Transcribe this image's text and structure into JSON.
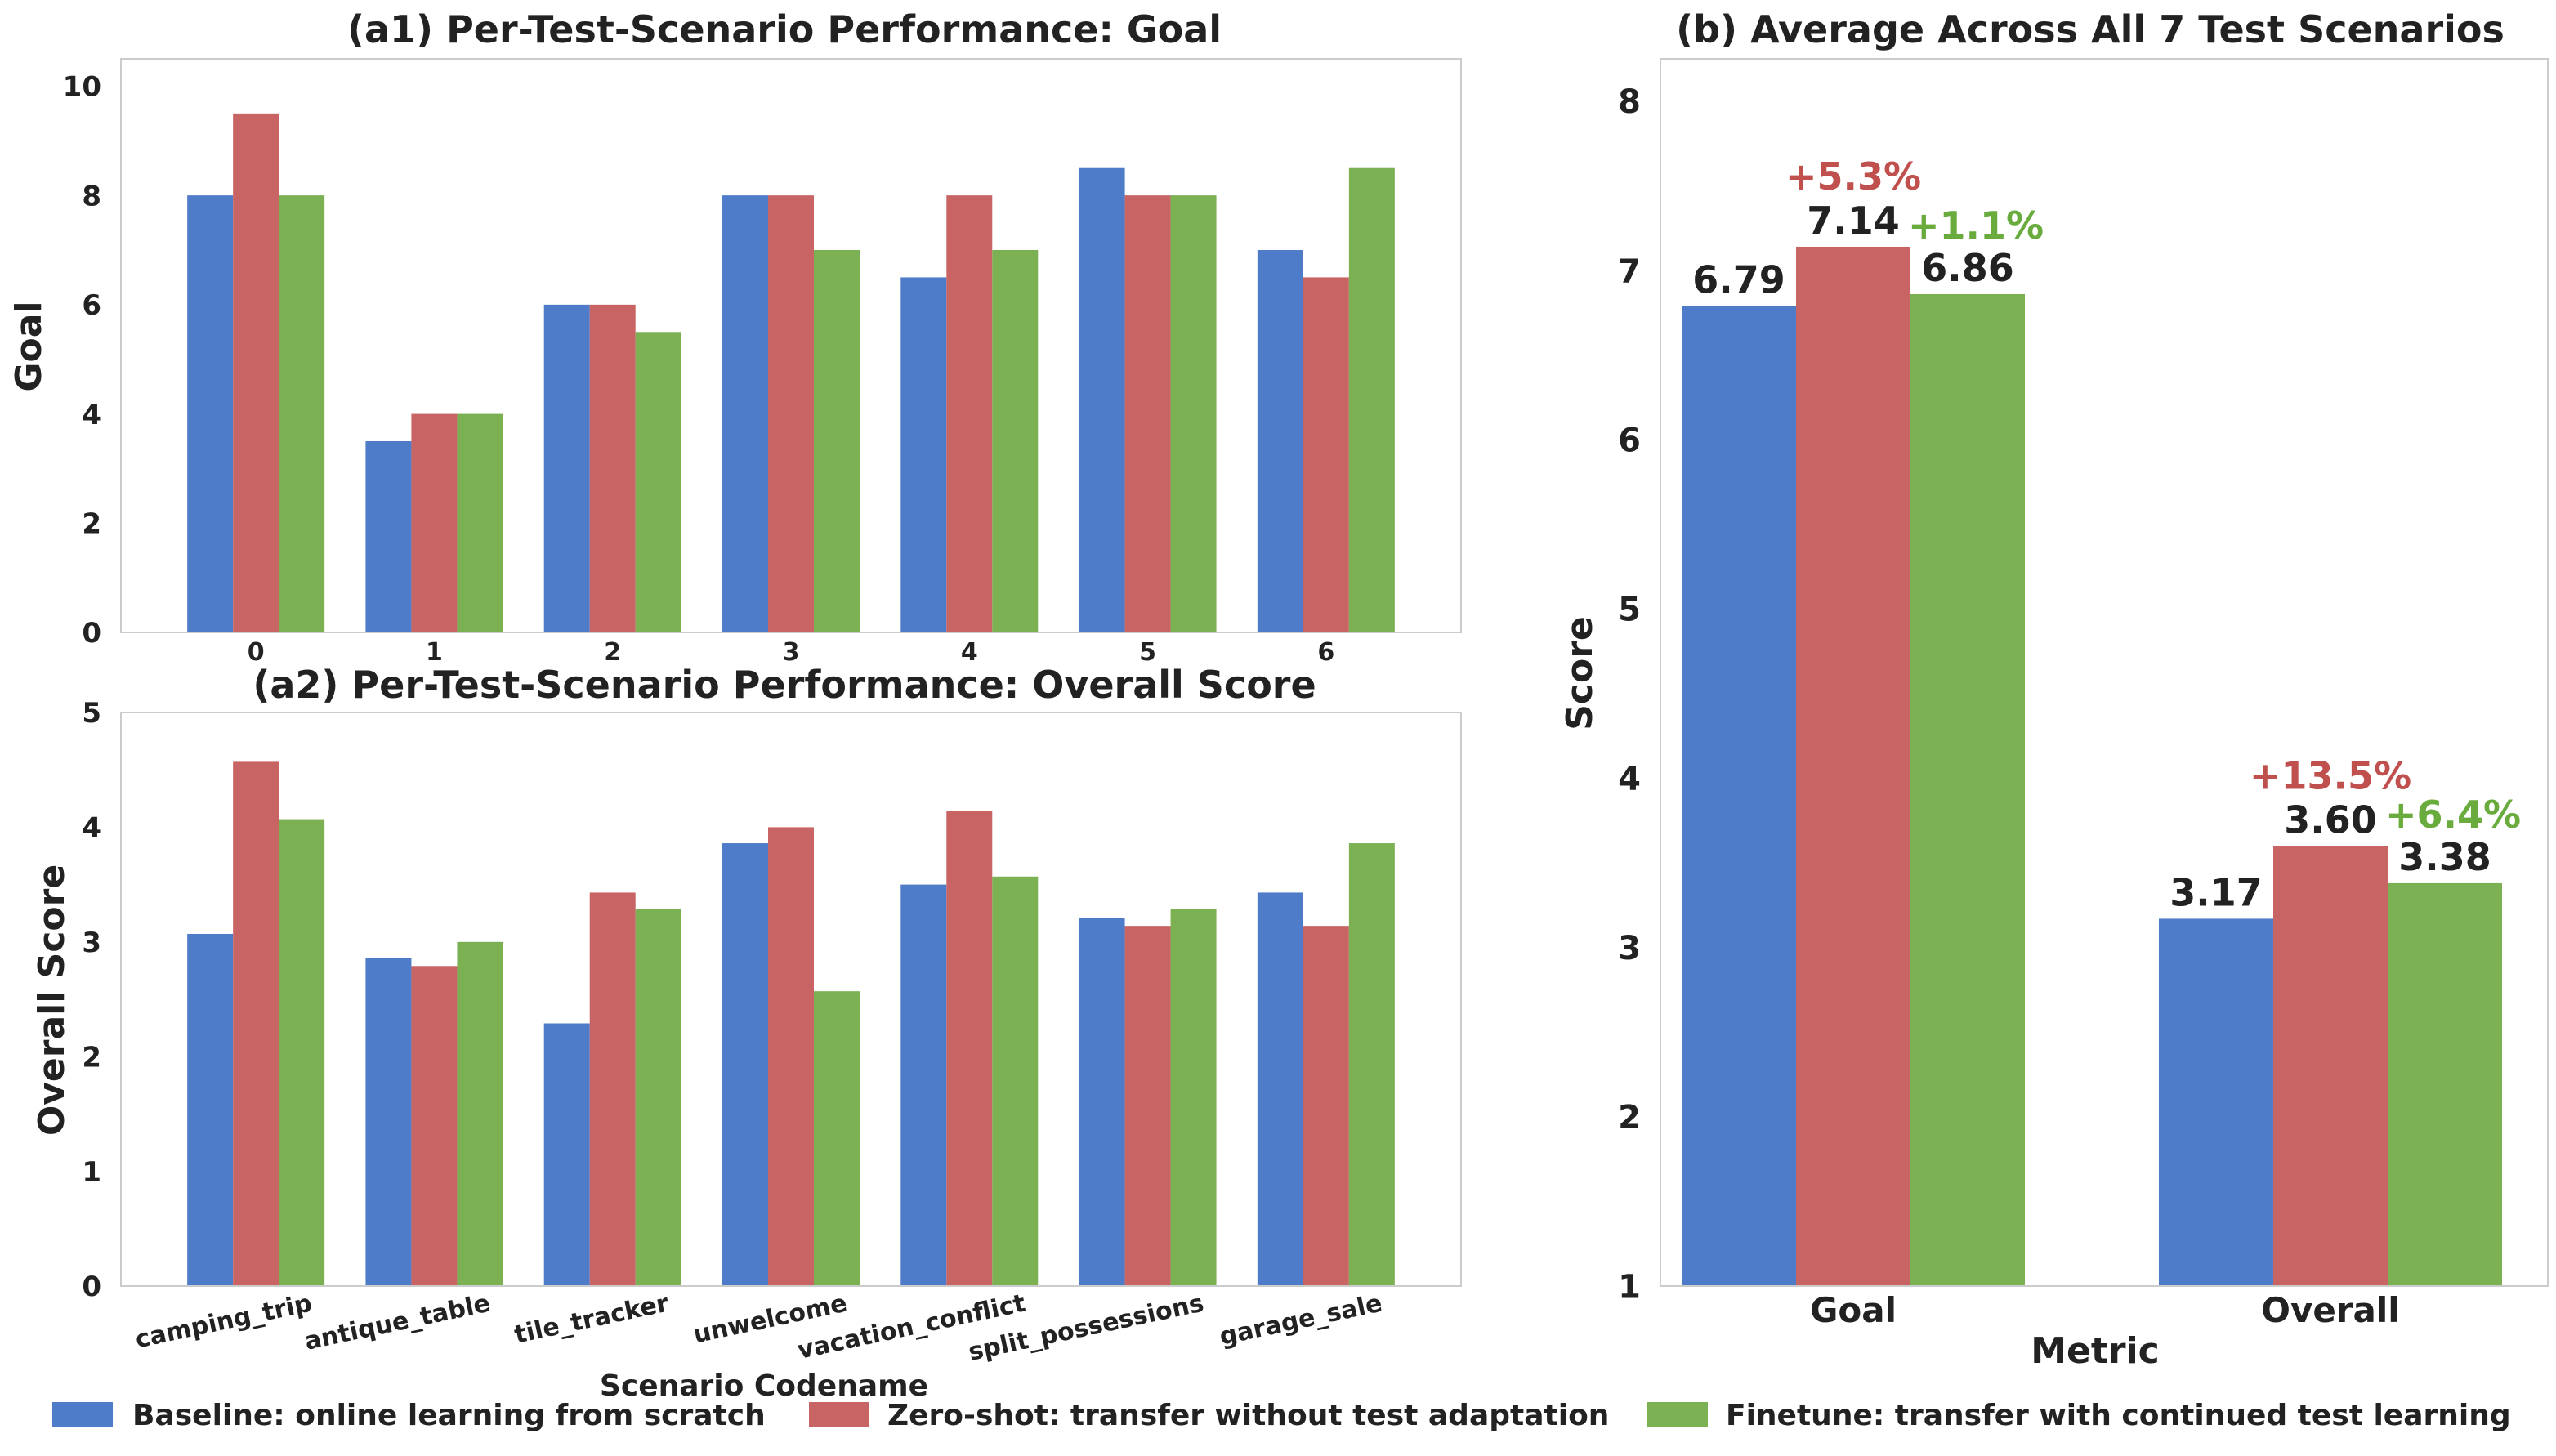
{
  "colors": {
    "baseline": "#4f7cc8",
    "zeroshot": "#c86464",
    "finetune": "#7bb053",
    "zeroshot_text": "#c0504d",
    "finetune_text": "#6aab3e",
    "axis": "#cccccc",
    "text": "#222222"
  },
  "legend": {
    "items": [
      {
        "label": "Baseline: online learning from scratch",
        "color": "#4f7cc8"
      },
      {
        "label": "Zero-shot: transfer without test adaptation",
        "color": "#c86464"
      },
      {
        "label": "Finetune: transfer with continued test learning",
        "color": "#7bb053"
      }
    ]
  },
  "chart_data": [
    {
      "id": "a1",
      "type": "bar",
      "title": "(a1) Per-Test-Scenario Performance: Goal",
      "ylabel": "Goal",
      "xlabel": "",
      "ylim": [
        0,
        10.5
      ],
      "yticks": [
        0,
        2,
        4,
        6,
        8,
        10
      ],
      "categories": [
        "0",
        "1",
        "2",
        "3",
        "4",
        "5",
        "6"
      ],
      "series": [
        {
          "name": "Baseline: online learning from scratch",
          "values": [
            8,
            3.5,
            6,
            8,
            6.5,
            8.5,
            7
          ]
        },
        {
          "name": "Zero-shot: transfer without test adaptation",
          "values": [
            9.5,
            4,
            6,
            8,
            8,
            8,
            6.5
          ]
        },
        {
          "name": "Finetune: transfer with continued test learning",
          "values": [
            8,
            4,
            5.5,
            7,
            7,
            8,
            8.5
          ]
        }
      ],
      "grid": false
    },
    {
      "id": "a2",
      "type": "bar",
      "title": "(a2) Per-Test-Scenario Performance: Overall Score",
      "ylabel": "Overall Score",
      "xlabel": "Scenario Codename",
      "ylim": [
        0,
        5
      ],
      "yticks": [
        0,
        1,
        2,
        3,
        4,
        5
      ],
      "categories": [
        "camping_trip",
        "antique_table",
        "tile_tracker",
        "unwelcome",
        "vacation_conflict",
        "split_possessions",
        "garage_sale"
      ],
      "series": [
        {
          "name": "Baseline: online learning from scratch",
          "values": [
            3.07,
            2.86,
            2.29,
            3.86,
            3.5,
            3.21,
            3.43
          ]
        },
        {
          "name": "Zero-shot: transfer without test adaptation",
          "values": [
            4.57,
            2.79,
            3.43,
            4.0,
            4.14,
            3.14,
            3.14
          ]
        },
        {
          "name": "Finetune: transfer with continued test learning",
          "values": [
            4.07,
            3.0,
            3.29,
            2.57,
            3.57,
            3.29,
            3.86
          ]
        }
      ],
      "grid": false
    },
    {
      "id": "b",
      "type": "bar",
      "title": "(b) Average Across All 7 Test Scenarios",
      "ylabel": "Score",
      "xlabel": "Metric",
      "ylim": [
        1,
        8.25
      ],
      "yticks": [
        1,
        2,
        3,
        4,
        5,
        6,
        7,
        8
      ],
      "categories": [
        "Goal",
        "Overall"
      ],
      "series": [
        {
          "name": "Baseline: online learning from scratch",
          "values": [
            6.79,
            3.17
          ],
          "labels": [
            "6.79",
            "3.17"
          ]
        },
        {
          "name": "Zero-shot: transfer without test adaptation",
          "values": [
            7.14,
            3.6
          ],
          "labels": [
            "7.14",
            "3.60"
          ],
          "delta": [
            "+5.3%",
            "+13.5%"
          ]
        },
        {
          "name": "Finetune: transfer with continued test learning",
          "values": [
            6.86,
            3.38
          ],
          "labels": [
            "6.86",
            "3.38"
          ],
          "delta": [
            "+1.1%",
            "+6.4%"
          ]
        }
      ],
      "grid": false
    }
  ]
}
